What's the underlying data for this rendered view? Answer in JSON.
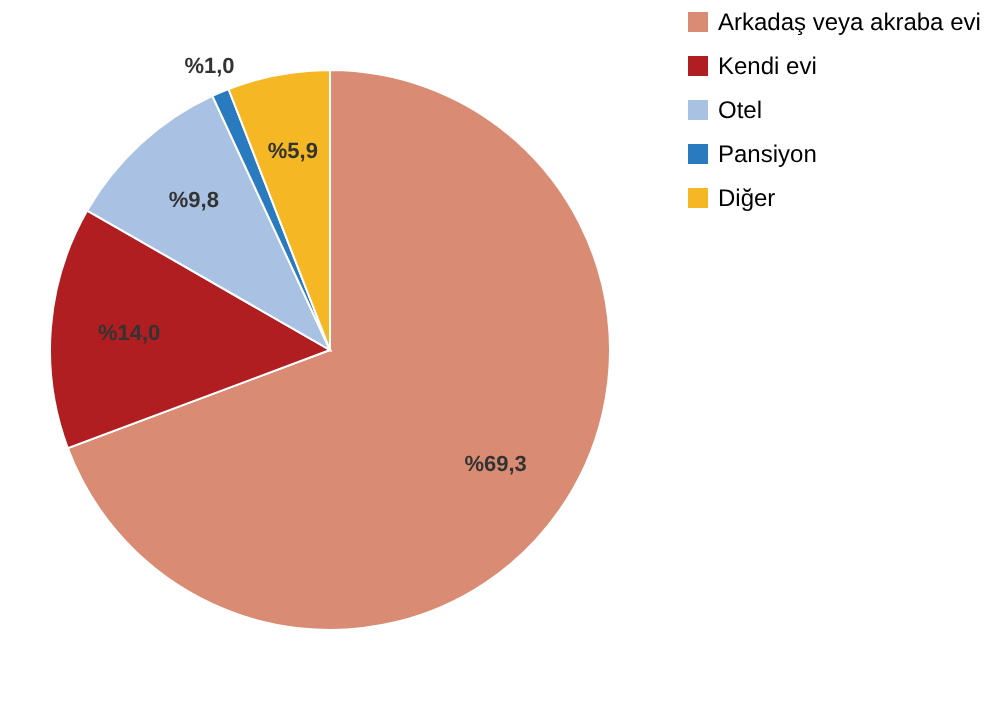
{
  "chart_data": {
    "type": "pie",
    "categories": [
      "Arkadaş veya akraba evi",
      "Kendi evi",
      "Otel",
      "Pansiyon",
      "Diğer"
    ],
    "values": [
      69.3,
      14.0,
      9.8,
      1.0,
      5.9
    ],
    "colors": [
      "#d98b73",
      "#b01e22",
      "#a9c1e2",
      "#2a7abf",
      "#f6b724"
    ],
    "value_labels": [
      "%69,3",
      "%14,0",
      "%9,8",
      "%1,0",
      "%5,9"
    ],
    "legend": "right"
  }
}
